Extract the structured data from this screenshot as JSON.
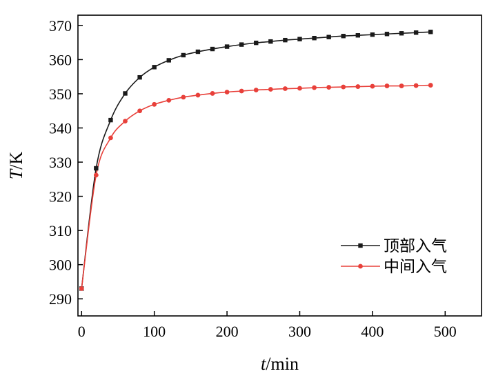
{
  "chart_data": {
    "type": "line",
    "x": [
      0,
      20,
      40,
      60,
      80,
      100,
      120,
      140,
      160,
      180,
      200,
      220,
      240,
      260,
      280,
      300,
      320,
      340,
      360,
      380,
      400,
      420,
      440,
      460,
      480
    ],
    "series": [
      {
        "name": "顶部入气",
        "color": "#1a1a1a",
        "marker": "square",
        "values": [
          293.0,
          328.2,
          342.3,
          350.1,
          354.8,
          357.8,
          359.8,
          361.3,
          362.3,
          363.1,
          363.8,
          364.4,
          364.9,
          365.3,
          365.7,
          366.0,
          366.3,
          366.6,
          366.9,
          367.1,
          367.3,
          367.5,
          367.7,
          367.9,
          368.1
        ]
      },
      {
        "name": "中间入气",
        "color": "#e8403a",
        "marker": "circle",
        "values": [
          293.0,
          326.2,
          337.1,
          342.0,
          345.0,
          346.9,
          348.1,
          349.0,
          349.6,
          350.1,
          350.5,
          350.8,
          351.1,
          351.3,
          351.5,
          351.6,
          351.8,
          351.9,
          352.0,
          352.1,
          352.2,
          352.3,
          352.3,
          352.4,
          352.5
        ]
      }
    ],
    "xlim": [
      -5,
      550
    ],
    "ylim": [
      285,
      373
    ],
    "xticks": [
      0,
      100,
      200,
      300,
      400,
      500
    ],
    "yticks": [
      290,
      300,
      310,
      320,
      330,
      340,
      350,
      360,
      370
    ],
    "xlabel": {
      "italic": "t",
      "rest": "/min"
    },
    "ylabel": {
      "italic": "T",
      "rest": "/K"
    },
    "title": "",
    "grid": false,
    "legend": "bottom-right"
  }
}
